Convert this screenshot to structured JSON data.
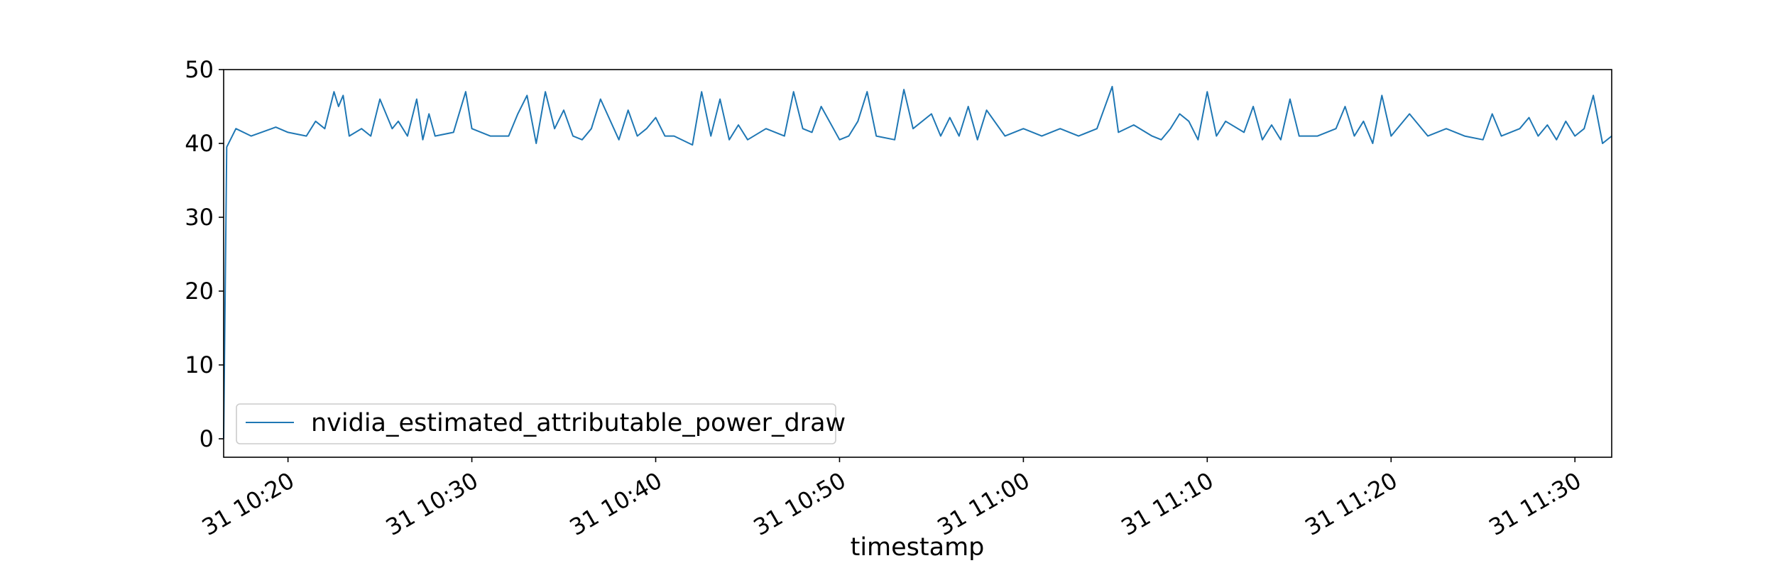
{
  "chart_data": {
    "type": "line",
    "title": "",
    "xlabel": "timestamp",
    "ylabel": "",
    "x_range": [
      "31 10:16:30",
      "31 11:32:00"
    ],
    "ylim": [
      -2.5,
      50
    ],
    "yticks": [
      0,
      10,
      20,
      30,
      40,
      50
    ],
    "xticks": [
      {
        "time": "31 10:20",
        "label": "31 10:20"
      },
      {
        "time": "31 10:30",
        "label": "31 10:30"
      },
      {
        "time": "31 10:40",
        "label": "31 10:40"
      },
      {
        "time": "31 10:50",
        "label": "31 10:50"
      },
      {
        "time": "31 11:00",
        "label": "31 11:00"
      },
      {
        "time": "31 11:10",
        "label": "31 11:10"
      },
      {
        "time": "31 11:20",
        "label": "31 11:20"
      },
      {
        "time": "31 11:30",
        "label": "31 11:30"
      }
    ],
    "grid": false,
    "legend_position": "lower-left",
    "colors": {
      "series": "#1f77b4",
      "axes": "#000000"
    },
    "series": [
      {
        "name": "nvidia_estimated_attributable_power_draw",
        "x": [
          "31 10:16:30",
          "31 10:16:40",
          "31 10:17:10",
          "31 10:18:00",
          "31 10:19:20",
          "31 10:20:00",
          "31 10:21:00",
          "31 10:21:30",
          "31 10:22:00",
          "31 10:22:30",
          "31 10:22:45",
          "31 10:23:00",
          "31 10:23:20",
          "31 10:24:00",
          "31 10:24:30",
          "31 10:25:00",
          "31 10:25:40",
          "31 10:26:00",
          "31 10:26:30",
          "31 10:27:00",
          "31 10:27:20",
          "31 10:27:40",
          "31 10:28:00",
          "31 10:29:00",
          "31 10:29:40",
          "31 10:30:00",
          "31 10:31:00",
          "31 10:32:00",
          "31 10:32:30",
          "31 10:33:00",
          "31 10:33:30",
          "31 10:34:00",
          "31 10:34:30",
          "31 10:35:00",
          "31 10:35:30",
          "31 10:36:00",
          "31 10:36:30",
          "31 10:37:00",
          "31 10:38:00",
          "31 10:38:30",
          "31 10:39:00",
          "31 10:39:30",
          "31 10:40:00",
          "31 10:40:30",
          "31 10:41:00",
          "31 10:42:00",
          "31 10:42:30",
          "31 10:43:00",
          "31 10:43:30",
          "31 10:44:00",
          "31 10:44:30",
          "31 10:45:00",
          "31 10:46:00",
          "31 10:47:00",
          "31 10:47:30",
          "31 10:48:00",
          "31 10:48:30",
          "31 10:49:00",
          "31 10:50:00",
          "31 10:50:30",
          "31 10:51:00",
          "31 10:51:30",
          "31 10:52:00",
          "31 10:53:00",
          "31 10:53:30",
          "31 10:54:00",
          "31 10:55:00",
          "31 10:55:30",
          "31 10:56:00",
          "31 10:56:30",
          "31 10:57:00",
          "31 10:57:30",
          "31 10:58:00",
          "31 10:59:00",
          "31 11:00:00",
          "31 11:01:00",
          "31 11:02:00",
          "31 11:03:00",
          "31 11:04:00",
          "31 11:04:50",
          "31 11:05:10",
          "31 11:06:00",
          "31 11:07:00",
          "31 11:07:30",
          "31 11:08:00",
          "31 11:08:30",
          "31 11:09:00",
          "31 11:09:30",
          "31 11:10:00",
          "31 11:10:30",
          "31 11:11:00",
          "31 11:12:00",
          "31 11:12:30",
          "31 11:13:00",
          "31 11:13:30",
          "31 11:14:00",
          "31 11:14:30",
          "31 11:15:00",
          "31 11:16:00",
          "31 11:17:00",
          "31 11:17:30",
          "31 11:18:00",
          "31 11:18:30",
          "31 11:19:00",
          "31 11:19:30",
          "31 11:20:00",
          "31 11:21:00",
          "31 11:22:00",
          "31 11:23:00",
          "31 11:24:00",
          "31 11:25:00",
          "31 11:25:30",
          "31 11:26:00",
          "31 11:27:00",
          "31 11:27:30",
          "31 11:28:00",
          "31 11:28:30",
          "31 11:29:00",
          "31 11:29:30",
          "31 11:30:00",
          "31 11:30:30",
          "31 11:31:00",
          "31 11:31:30",
          "31 11:32:00"
        ],
        "values": [
          0,
          39.5,
          42,
          41,
          42.2,
          41.5,
          41,
          43,
          42,
          47,
          45,
          46.5,
          41,
          42,
          41,
          46,
          42,
          43,
          41,
          46,
          40.5,
          44,
          41,
          41.5,
          47,
          42,
          41,
          41,
          44,
          46.5,
          40,
          47,
          42,
          44.5,
          41,
          40.5,
          42,
          46,
          40.5,
          44.5,
          41,
          42,
          43.5,
          41,
          41,
          39.8,
          47,
          41,
          46,
          40.5,
          42.5,
          40.5,
          42,
          41,
          47,
          42,
          41.5,
          45,
          40.5,
          41,
          43,
          47,
          41,
          40.5,
          47.3,
          42,
          44,
          41,
          43.5,
          41,
          45,
          40.5,
          44.5,
          41,
          42,
          41,
          42,
          41,
          42,
          47.7,
          41.5,
          42.5,
          41,
          40.5,
          42,
          44,
          43,
          40.5,
          47,
          41,
          43,
          41.5,
          45,
          40.5,
          42.5,
          40.5,
          46,
          41,
          41,
          42,
          45,
          41,
          43,
          40,
          46.5,
          41,
          44,
          41,
          42,
          41,
          40.5,
          44,
          41,
          42,
          43.5,
          41,
          42.5,
          40.5,
          43,
          41,
          42,
          46.5,
          40,
          41
        ]
      }
    ]
  }
}
